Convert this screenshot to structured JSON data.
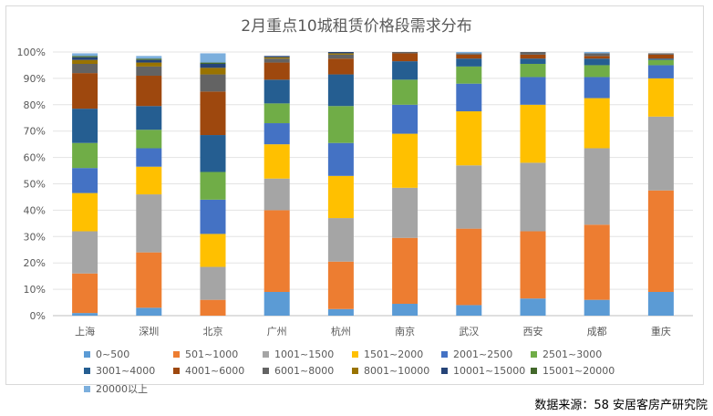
{
  "title": "2月重点10城租赁价格段需求分布",
  "source": "数据来源：58 安居客房产研究院",
  "chart_data": {
    "type": "bar",
    "stacked": true,
    "title": "2月重点10城租赁价格段需求分布",
    "categories": [
      "上海",
      "深圳",
      "北京",
      "广州",
      "杭州",
      "南京",
      "武汉",
      "西安",
      "成都",
      "重庆"
    ],
    "ylim": [
      0,
      100
    ],
    "y_ticks": [
      "0%",
      "10%",
      "20%",
      "30%",
      "40%",
      "50%",
      "60%",
      "70%",
      "80%",
      "90%",
      "100%"
    ],
    "grid": true,
    "legend_position": "bottom",
    "series": [
      {
        "name": "0~500",
        "color": "#5b9bd5",
        "values": [
          1,
          3,
          0,
          9,
          2.5,
          4.5,
          4,
          6.5,
          6,
          9
        ]
      },
      {
        "name": "501~1000",
        "color": "#ed7d31",
        "values": [
          15,
          21,
          6,
          31,
          18,
          25,
          29,
          25.5,
          28.5,
          38.5
        ]
      },
      {
        "name": "1001~1500",
        "color": "#a5a5a5",
        "values": [
          16,
          22,
          12.5,
          12,
          16.5,
          19,
          24,
          26,
          29,
          28
        ]
      },
      {
        "name": "1501~2000",
        "color": "#ffc000",
        "values": [
          14.5,
          10.5,
          12.5,
          13,
          16,
          20.5,
          20.5,
          22,
          19,
          14.5
        ]
      },
      {
        "name": "2001~2500",
        "color": "#4472c4",
        "values": [
          9.5,
          7,
          13,
          8,
          12.5,
          11,
          10.5,
          10.5,
          8,
          5
        ]
      },
      {
        "name": "2501~3000",
        "color": "#70ad47",
        "values": [
          9.5,
          7,
          10.5,
          7.5,
          14,
          9.5,
          6.5,
          5,
          4.5,
          2
        ]
      },
      {
        "name": "3001~4000",
        "color": "#255e91",
        "values": [
          13,
          9,
          14,
          9,
          12,
          7,
          3,
          2,
          2.5,
          0.5
        ]
      },
      {
        "name": "4001~6000",
        "color": "#9e480e",
        "values": [
          13.5,
          11.5,
          16.5,
          6.5,
          6,
          3,
          1.5,
          1.5,
          1,
          1.5
        ]
      },
      {
        "name": "6001~8000",
        "color": "#636363",
        "values": [
          3.5,
          3.5,
          6.5,
          1.5,
          1.5,
          0.5,
          0.5,
          1,
          1,
          0.5
        ]
      },
      {
        "name": "8001~10000",
        "color": "#997300",
        "values": [
          1.5,
          1.5,
          2.5,
          0.5,
          0.5,
          0,
          0,
          0,
          0,
          0
        ]
      },
      {
        "name": "10001~15000",
        "color": "#264478",
        "values": [
          1,
          1,
          1.5,
          0.5,
          0.5,
          0,
          0,
          0,
          0,
          0
        ]
      },
      {
        "name": "15001~20000",
        "color": "#43682b",
        "values": [
          0.5,
          0.5,
          0.5,
          0,
          0,
          0,
          0,
          0,
          0,
          0
        ]
      },
      {
        "name": "20000以上",
        "color": "#7cafdd",
        "values": [
          1,
          1,
          3.5,
          0,
          0,
          0,
          0.5,
          0,
          0.5,
          0
        ]
      }
    ]
  }
}
